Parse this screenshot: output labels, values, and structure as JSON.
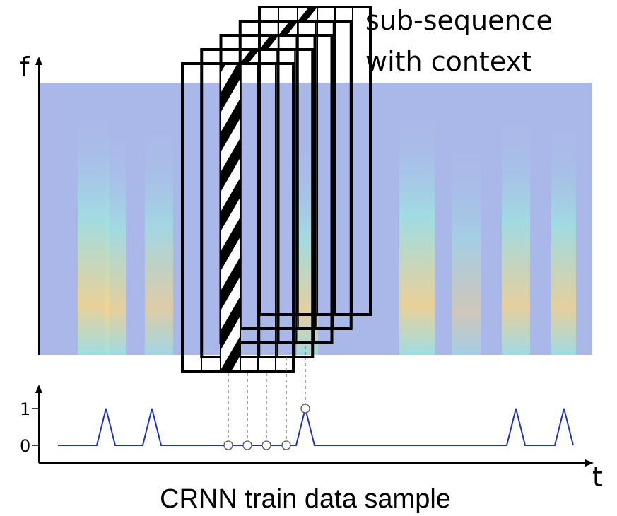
{
  "annotation": {
    "lines": [
      "sub-sequence",
      "with context"
    ]
  },
  "axes": {
    "f": "f",
    "t": "t",
    "tick_labels": [
      "1",
      "0"
    ]
  },
  "caption": "CRNN train data sample"
}
